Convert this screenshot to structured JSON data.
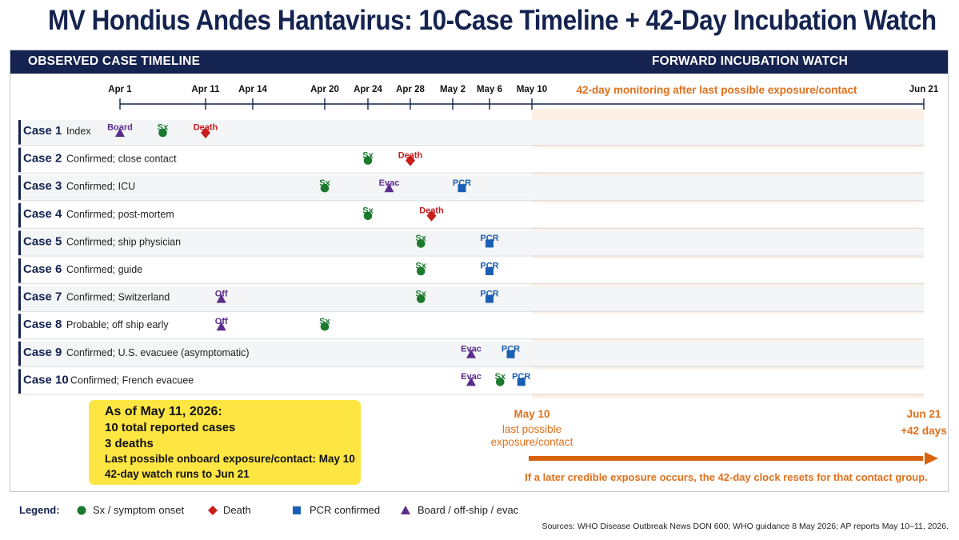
{
  "title": "MV Hondius Andes Hantavirus: 10-Case Timeline + 42-Day Incubation Watch",
  "header": {
    "left": "OBSERVED CASE TIMELINE",
    "right": "FORWARD INCUBATION WATCH"
  },
  "watch_note": "42-day monitoring after last possible exposure/contact",
  "axis": {
    "ticks": [
      {
        "date": "2026-04-01",
        "label": "Apr 1"
      },
      {
        "date": "2026-04-11",
        "label": "Apr 11"
      },
      {
        "date": "2026-04-14",
        "label": "Apr 14"
      },
      {
        "date": "2026-04-20",
        "label": "Apr 20"
      },
      {
        "date": "2026-04-24",
        "label": "Apr 24"
      },
      {
        "date": "2026-04-28",
        "label": "Apr 28"
      },
      {
        "date": "2026-05-02",
        "label": "May 2"
      },
      {
        "date": "2026-05-06",
        "label": "May 6"
      },
      {
        "date": "2026-05-10",
        "label": "May 10"
      },
      {
        "date": "2026-06-21",
        "label": "Jun 21"
      }
    ]
  },
  "event_types": {
    "sx": {
      "shape": "circle",
      "color": "#1a7a2e"
    },
    "death": {
      "shape": "diamond",
      "color": "#c81e1e"
    },
    "pcr": {
      "shape": "square",
      "color": "#1a5fb4"
    },
    "move": {
      "shape": "triangle",
      "color": "#5a2d8c"
    }
  },
  "cases": [
    {
      "label": "Case 1",
      "desc": "Index",
      "events": [
        {
          "type": "move",
          "date": "2026-04-01",
          "label": "Board"
        },
        {
          "type": "sx",
          "date": "2026-04-06",
          "label": "Sx"
        },
        {
          "type": "death",
          "date": "2026-04-11",
          "label": "Death"
        }
      ]
    },
    {
      "label": "Case 2",
      "desc": "Confirmed; close contact",
      "events": [
        {
          "type": "sx",
          "date": "2026-04-24",
          "label": "Sx"
        },
        {
          "type": "death",
          "date": "2026-04-28",
          "label": "Death"
        }
      ]
    },
    {
      "label": "Case 3",
      "desc": "Confirmed; ICU",
      "events": [
        {
          "type": "sx",
          "date": "2026-04-20",
          "label": "Sx"
        },
        {
          "type": "move",
          "date": "2026-04-26",
          "label": "Evac"
        },
        {
          "type": "pcr",
          "date": "2026-05-03",
          "label": "PCR"
        }
      ]
    },
    {
      "label": "Case 4",
      "desc": "Confirmed; post-mortem",
      "events": [
        {
          "type": "sx",
          "date": "2026-04-24",
          "label": "Sx"
        },
        {
          "type": "death",
          "date": "2026-04-30",
          "label": "Death"
        }
      ]
    },
    {
      "label": "Case 5",
      "desc": "Confirmed; ship physician",
      "events": [
        {
          "type": "sx",
          "date": "2026-04-29",
          "label": "Sx"
        },
        {
          "type": "pcr",
          "date": "2026-05-06",
          "label": "PCR"
        }
      ]
    },
    {
      "label": "Case 6",
      "desc": "Confirmed; guide",
      "events": [
        {
          "type": "sx",
          "date": "2026-04-29",
          "label": "Sx"
        },
        {
          "type": "pcr",
          "date": "2026-05-06",
          "label": "PCR"
        }
      ]
    },
    {
      "label": "Case 7",
      "desc": "Confirmed; Switzerland",
      "events": [
        {
          "type": "move",
          "date": "2026-04-12",
          "label": "Off"
        },
        {
          "type": "sx",
          "date": "2026-04-29",
          "label": "Sx"
        },
        {
          "type": "pcr",
          "date": "2026-05-06",
          "label": "PCR"
        }
      ]
    },
    {
      "label": "Case 8",
      "desc": "Probable; off ship early",
      "events": [
        {
          "type": "move",
          "date": "2026-04-12",
          "label": "Off"
        },
        {
          "type": "sx",
          "date": "2026-04-20",
          "label": "Sx"
        }
      ]
    },
    {
      "label": "Case 9",
      "desc": "Confirmed; U.S. evacuee (asymptomatic)",
      "events": [
        {
          "type": "move",
          "date": "2026-05-04",
          "label": "Evac"
        },
        {
          "type": "pcr",
          "date": "2026-05-08",
          "label": "PCR"
        }
      ]
    },
    {
      "label": "Case 10",
      "desc": "Confirmed; French evacuee",
      "events": [
        {
          "type": "move",
          "date": "2026-05-04",
          "label": "Evac"
        },
        {
          "type": "sx",
          "date": "2026-05-07",
          "label": "Sx"
        },
        {
          "type": "pcr",
          "date": "2026-05-09",
          "label": "PCR"
        }
      ]
    }
  ],
  "status": {
    "line1": "As of May 11, 2026:",
    "line2": "10 total reported cases",
    "line3": "3 deaths",
    "line4": "Last possible onboard exposure/contact: May 10",
    "line5": "42-day watch runs to Jun 21"
  },
  "watch": {
    "start_line1": "May 10",
    "start_line2": "last possible",
    "start_line3": "exposure/contact",
    "end_line1": "Jun 21",
    "end_line2": "+42 days",
    "note": "If a later credible exposure occurs, the 42-day clock resets for that contact group."
  },
  "legend": {
    "title": "Legend:",
    "sx": "Sx / symptom onset",
    "death": "Death",
    "pcr": "PCR confirmed",
    "move": "Board / off-ship / evac"
  },
  "sources": "Sources: WHO Disease Outbreak News DON 600; WHO guidance 8 May 2026; AP reports May 10–11, 2026.",
  "colors": {
    "navy": "#14234f",
    "orange": "#e0701c",
    "watch_fill": "#fdf1e6",
    "status_yellow": "#fde642"
  }
}
